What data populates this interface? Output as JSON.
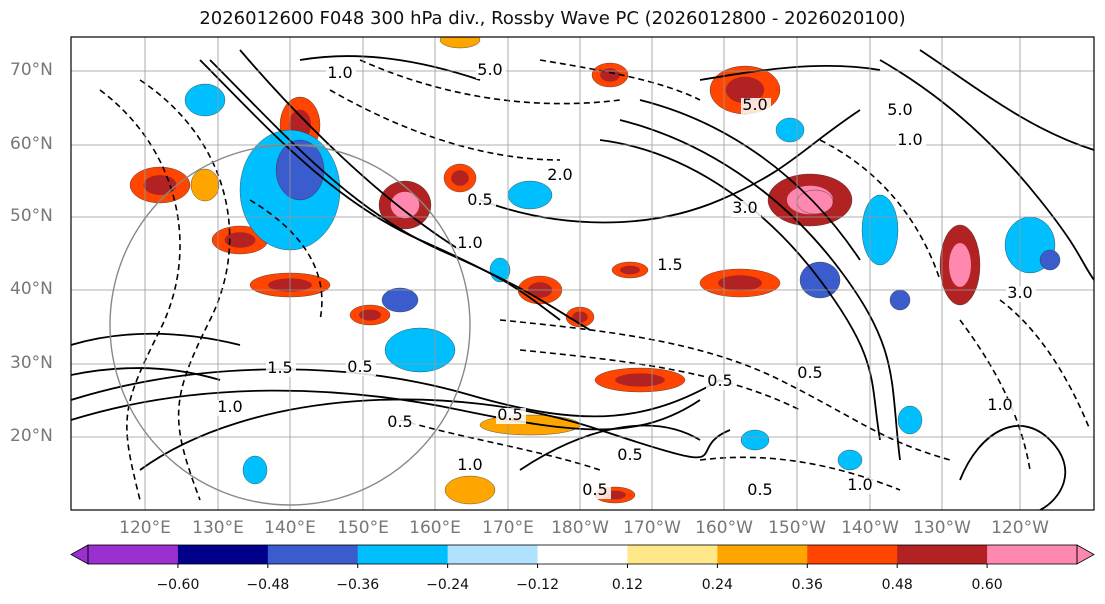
{
  "title": "2026012600 F048 300 hPa div., Rossby Wave PC (2026012800 - 2026020100)",
  "lat_labels": [
    "70°N",
    "60°N",
    "50°N",
    "40°N",
    "30°N",
    "20°N"
  ],
  "lon_labels": [
    "120°E",
    "130°E",
    "140°E",
    "150°E",
    "160°E",
    "170°E",
    "180°W",
    "170°W",
    "160°W",
    "150°W",
    "140°W",
    "130°W",
    "120°W"
  ],
  "colorbar": {
    "ticks": [
      "−0.60",
      "−0.48",
      "−0.36",
      "−0.24",
      "−0.12",
      "0.12",
      "0.24",
      "0.36",
      "0.48",
      "0.60"
    ],
    "colors": [
      "#9b30d0",
      "#00008b",
      "#3a5ccc",
      "#00bfff",
      "#b0e2ff",
      "#ffffff",
      "#ffe88a",
      "#ffa500",
      "#ff4500",
      "#b22222",
      "#ff88b0"
    ]
  },
  "contour_labels": [
    "5.0",
    "1.0",
    "5.0",
    "1.0",
    "3.0",
    "2.0",
    "1.0",
    "0.5",
    "1.5",
    "0.5",
    "1.0",
    "0.5",
    "0.5",
    "0.5",
    "0.5",
    "1.0",
    "0.5",
    "1.5",
    "5.0",
    "3.0",
    "1.0",
    "1.0",
    "0.5",
    "0.5"
  ]
}
